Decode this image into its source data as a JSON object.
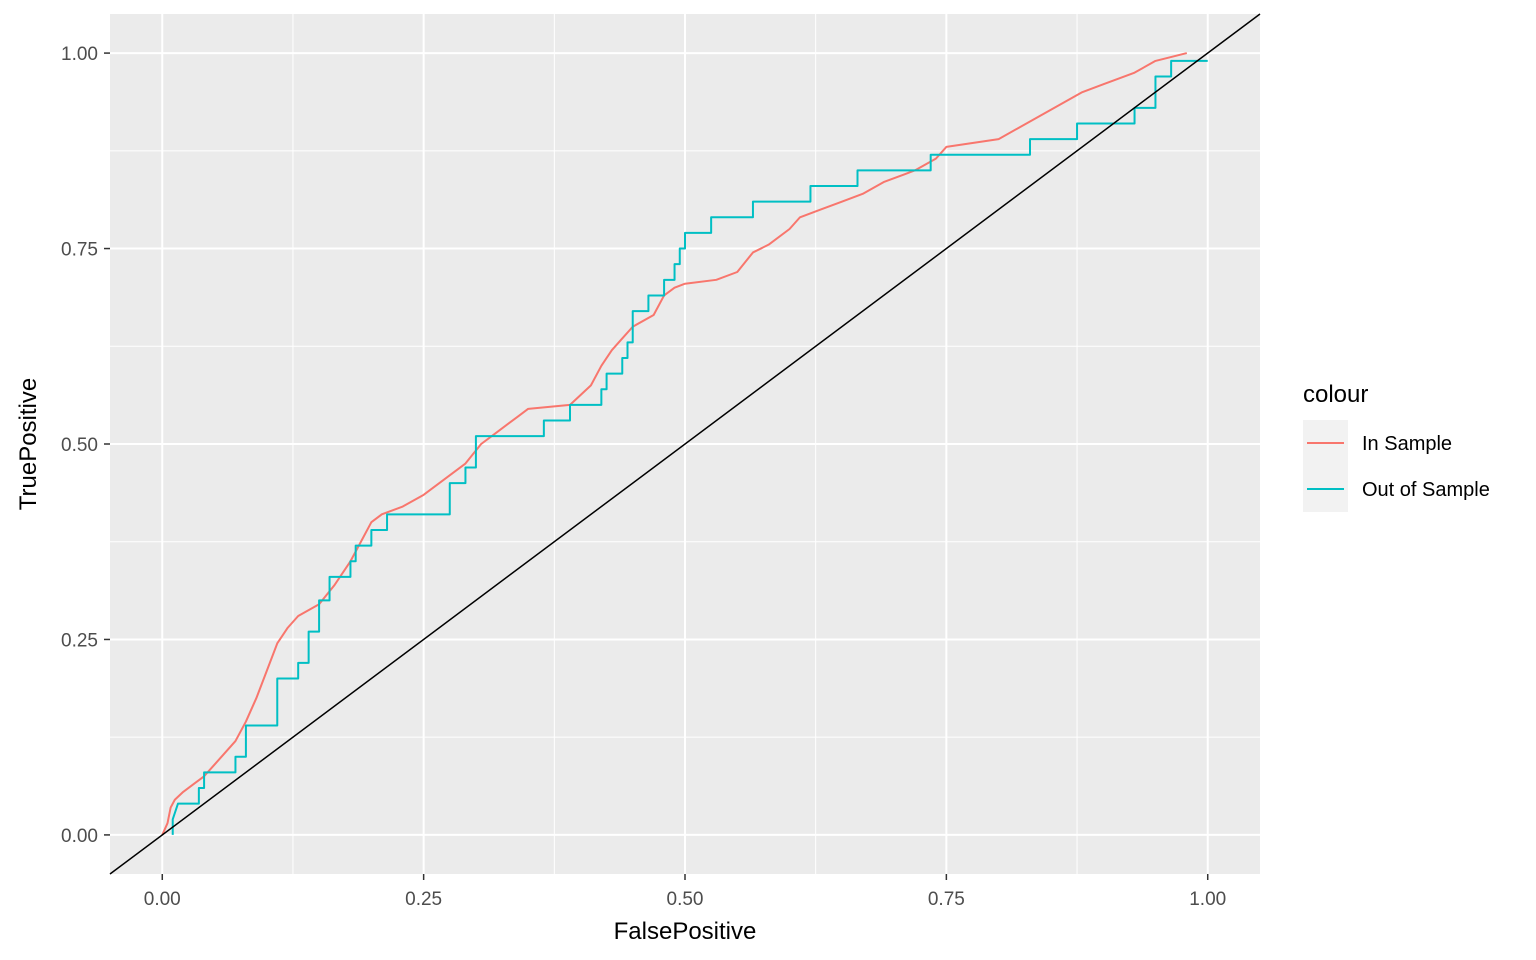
{
  "chart_data": {
    "type": "line",
    "xlabel": "FalsePositive",
    "ylabel": "TruePositive",
    "xlim": [
      -0.05,
      1.05
    ],
    "ylim": [
      -0.05,
      1.05
    ],
    "x_ticks": [
      "0.00",
      "0.25",
      "0.50",
      "0.75",
      "1.00"
    ],
    "y_ticks": [
      "0.00",
      "0.25",
      "0.50",
      "0.75",
      "1.00"
    ],
    "grid": true,
    "background": "#ebebeb",
    "legend": {
      "title": "colour",
      "position": "right"
    },
    "reference_line": {
      "from": [
        -0.05,
        -0.05
      ],
      "to": [
        1.05,
        1.05
      ],
      "color": "#000000"
    },
    "series": [
      {
        "name": "In Sample",
        "color": "#f8766d",
        "points": [
          [
            0,
            0
          ],
          [
            0.005,
            0.015
          ],
          [
            0.008,
            0.035
          ],
          [
            0.012,
            0.045
          ],
          [
            0.02,
            0.055
          ],
          [
            0.03,
            0.065
          ],
          [
            0.04,
            0.075
          ],
          [
            0.05,
            0.09
          ],
          [
            0.06,
            0.105
          ],
          [
            0.07,
            0.12
          ],
          [
            0.08,
            0.145
          ],
          [
            0.09,
            0.175
          ],
          [
            0.1,
            0.21
          ],
          [
            0.11,
            0.245
          ],
          [
            0.12,
            0.265
          ],
          [
            0.13,
            0.28
          ],
          [
            0.15,
            0.295
          ],
          [
            0.165,
            0.32
          ],
          [
            0.18,
            0.35
          ],
          [
            0.19,
            0.375
          ],
          [
            0.2,
            0.4
          ],
          [
            0.21,
            0.41
          ],
          [
            0.23,
            0.42
          ],
          [
            0.25,
            0.435
          ],
          [
            0.27,
            0.455
          ],
          [
            0.29,
            0.475
          ],
          [
            0.305,
            0.5
          ],
          [
            0.32,
            0.515
          ],
          [
            0.34,
            0.535
          ],
          [
            0.35,
            0.545
          ],
          [
            0.39,
            0.55
          ],
          [
            0.41,
            0.575
          ],
          [
            0.42,
            0.6
          ],
          [
            0.43,
            0.62
          ],
          [
            0.44,
            0.635
          ],
          [
            0.45,
            0.65
          ],
          [
            0.47,
            0.665
          ],
          [
            0.48,
            0.69
          ],
          [
            0.49,
            0.7
          ],
          [
            0.5,
            0.705
          ],
          [
            0.53,
            0.71
          ],
          [
            0.55,
            0.72
          ],
          [
            0.565,
            0.745
          ],
          [
            0.58,
            0.755
          ],
          [
            0.6,
            0.775
          ],
          [
            0.61,
            0.79
          ],
          [
            0.63,
            0.8
          ],
          [
            0.65,
            0.81
          ],
          [
            0.67,
            0.82
          ],
          [
            0.69,
            0.835
          ],
          [
            0.71,
            0.845
          ],
          [
            0.72,
            0.85
          ],
          [
            0.74,
            0.865
          ],
          [
            0.75,
            0.88
          ],
          [
            0.8,
            0.89
          ],
          [
            0.82,
            0.905
          ],
          [
            0.84,
            0.92
          ],
          [
            0.86,
            0.935
          ],
          [
            0.88,
            0.95
          ],
          [
            0.9,
            0.96
          ],
          [
            0.93,
            0.975
          ],
          [
            0.95,
            0.99
          ],
          [
            0.98,
            1.0
          ]
        ]
      },
      {
        "name": "Out of Sample",
        "color": "#00bfc4",
        "points": [
          [
            0.01,
            0
          ],
          [
            0.01,
            0.02
          ],
          [
            0.015,
            0.04
          ],
          [
            0.035,
            0.04
          ],
          [
            0.035,
            0.06
          ],
          [
            0.04,
            0.06
          ],
          [
            0.04,
            0.08
          ],
          [
            0.07,
            0.08
          ],
          [
            0.07,
            0.1
          ],
          [
            0.08,
            0.1
          ],
          [
            0.08,
            0.14
          ],
          [
            0.11,
            0.14
          ],
          [
            0.11,
            0.2
          ],
          [
            0.13,
            0.2
          ],
          [
            0.13,
            0.22
          ],
          [
            0.14,
            0.22
          ],
          [
            0.14,
            0.26
          ],
          [
            0.15,
            0.26
          ],
          [
            0.15,
            0.3
          ],
          [
            0.16,
            0.3
          ],
          [
            0.16,
            0.33
          ],
          [
            0.18,
            0.33
          ],
          [
            0.18,
            0.35
          ],
          [
            0.185,
            0.35
          ],
          [
            0.185,
            0.37
          ],
          [
            0.2,
            0.37
          ],
          [
            0.2,
            0.39
          ],
          [
            0.215,
            0.39
          ],
          [
            0.215,
            0.41
          ],
          [
            0.275,
            0.41
          ],
          [
            0.275,
            0.45
          ],
          [
            0.29,
            0.45
          ],
          [
            0.29,
            0.47
          ],
          [
            0.3,
            0.47
          ],
          [
            0.3,
            0.51
          ],
          [
            0.365,
            0.51
          ],
          [
            0.365,
            0.53
          ],
          [
            0.39,
            0.53
          ],
          [
            0.39,
            0.55
          ],
          [
            0.42,
            0.55
          ],
          [
            0.42,
            0.57
          ],
          [
            0.425,
            0.57
          ],
          [
            0.425,
            0.59
          ],
          [
            0.44,
            0.59
          ],
          [
            0.44,
            0.61
          ],
          [
            0.445,
            0.61
          ],
          [
            0.445,
            0.63
          ],
          [
            0.45,
            0.63
          ],
          [
            0.45,
            0.67
          ],
          [
            0.465,
            0.67
          ],
          [
            0.465,
            0.69
          ],
          [
            0.48,
            0.69
          ],
          [
            0.48,
            0.71
          ],
          [
            0.49,
            0.71
          ],
          [
            0.49,
            0.73
          ],
          [
            0.495,
            0.73
          ],
          [
            0.495,
            0.75
          ],
          [
            0.5,
            0.75
          ],
          [
            0.5,
            0.77
          ],
          [
            0.525,
            0.77
          ],
          [
            0.525,
            0.79
          ],
          [
            0.565,
            0.79
          ],
          [
            0.565,
            0.81
          ],
          [
            0.62,
            0.81
          ],
          [
            0.62,
            0.83
          ],
          [
            0.665,
            0.83
          ],
          [
            0.665,
            0.85
          ],
          [
            0.735,
            0.85
          ],
          [
            0.735,
            0.87
          ],
          [
            0.83,
            0.87
          ],
          [
            0.83,
            0.89
          ],
          [
            0.875,
            0.89
          ],
          [
            0.875,
            0.91
          ],
          [
            0.93,
            0.91
          ],
          [
            0.93,
            0.93
          ],
          [
            0.95,
            0.93
          ],
          [
            0.95,
            0.97
          ],
          [
            0.965,
            0.97
          ],
          [
            0.965,
            0.99
          ],
          [
            1.0,
            0.99
          ]
        ]
      }
    ]
  }
}
